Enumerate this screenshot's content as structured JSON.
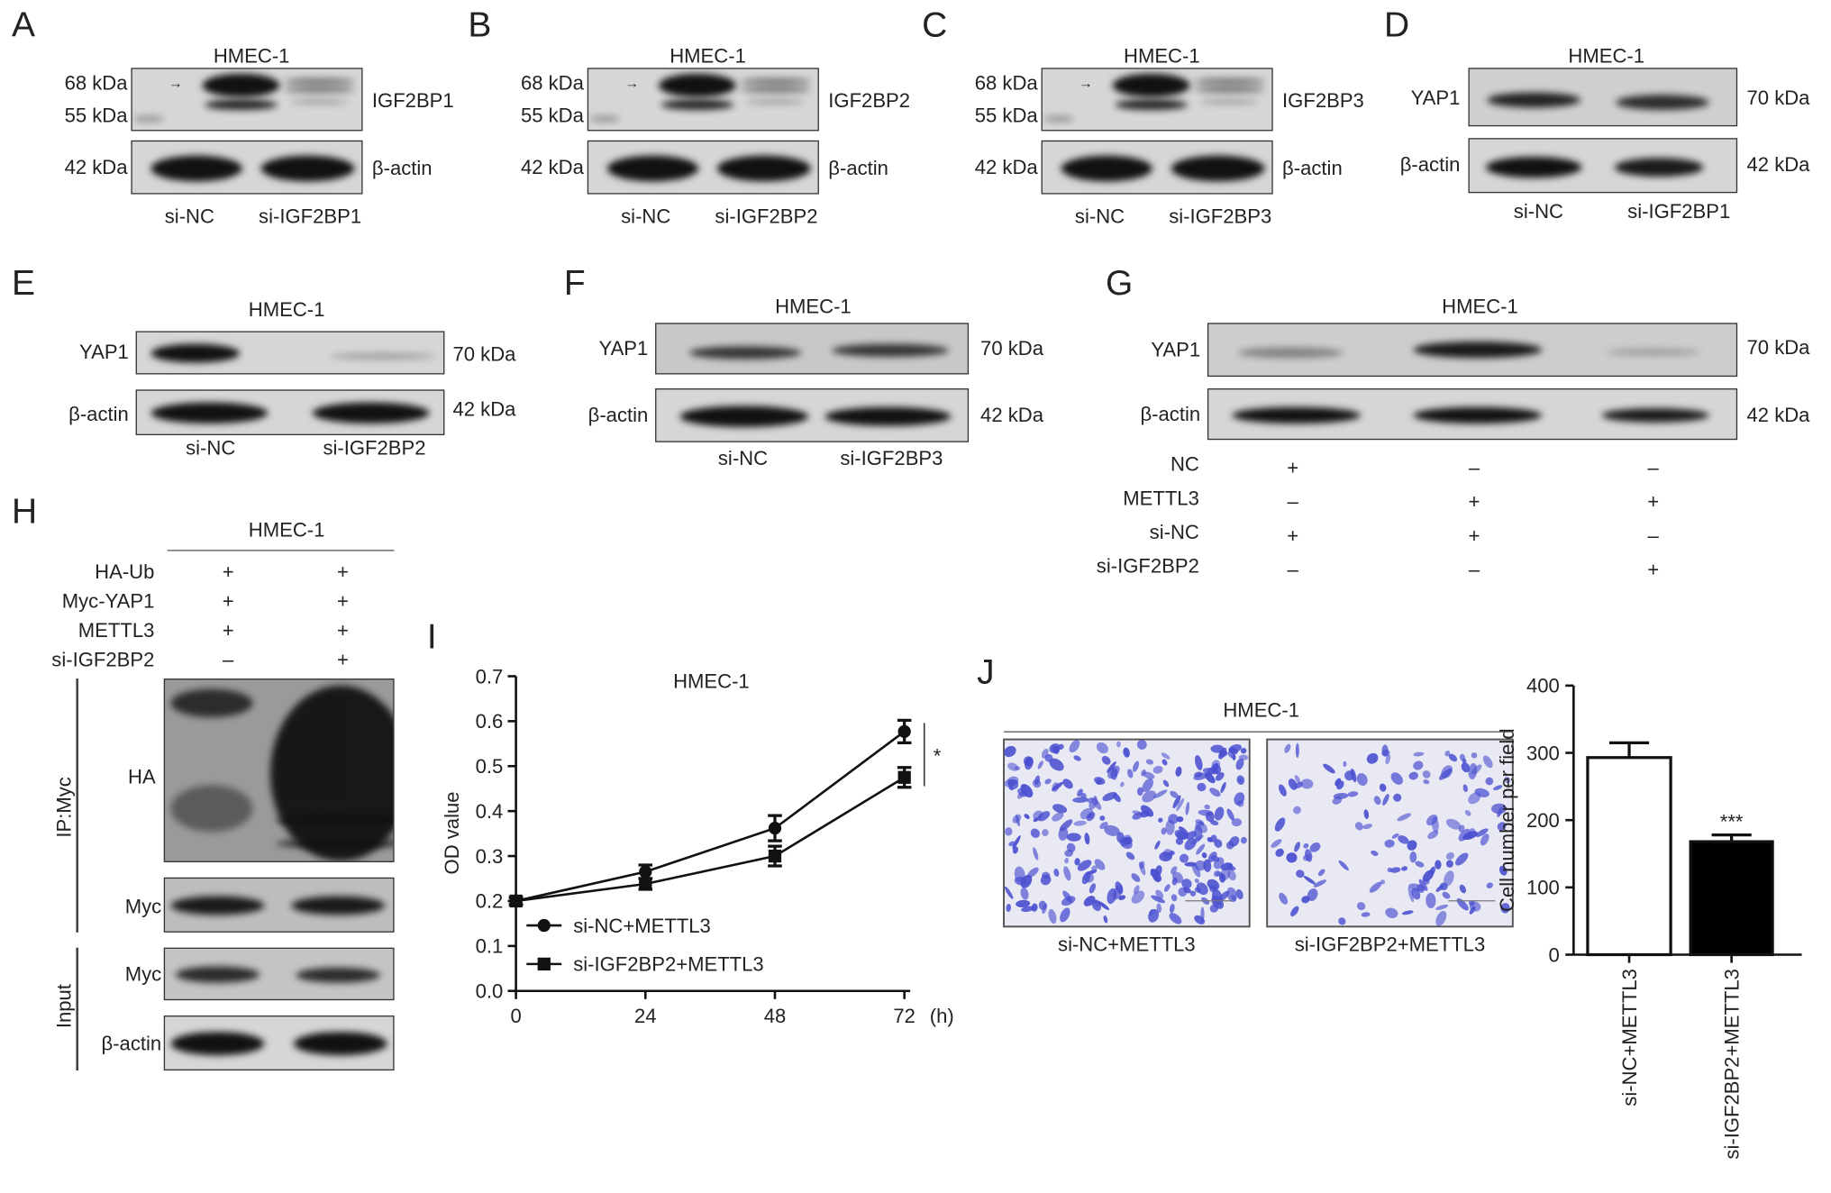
{
  "panels": {
    "A": {
      "letter": "A",
      "title": "HMEC-1",
      "markers": [
        "68 kDa",
        "55 kDa",
        "42 kDa"
      ],
      "targets": [
        "IGF2BP1",
        "β-actin"
      ],
      "lanes": [
        "si-NC",
        "si-IGF2BP1"
      ]
    },
    "B": {
      "letter": "B",
      "title": "HMEC-1",
      "markers": [
        "68 kDa",
        "55 kDa",
        "42 kDa"
      ],
      "targets": [
        "IGF2BP2",
        "β-actin"
      ],
      "lanes": [
        "si-NC",
        "si-IGF2BP2"
      ]
    },
    "C": {
      "letter": "C",
      "title": "HMEC-1",
      "markers": [
        "68 kDa",
        "55 kDa",
        "42 kDa"
      ],
      "targets": [
        "IGF2BP3",
        "β-actin"
      ],
      "lanes": [
        "si-NC",
        "si-IGF2BP3"
      ]
    },
    "D": {
      "letter": "D",
      "title": "HMEC-1",
      "targets": [
        "YAP1",
        "β-actin"
      ],
      "markers": [
        "70 kDa",
        "42 kDa"
      ],
      "lanes": [
        "si-NC",
        "si-IGF2BP1"
      ]
    },
    "E": {
      "letter": "E",
      "title": "HMEC-1",
      "targets": [
        "YAP1",
        "β-actin"
      ],
      "markers": [
        "70 kDa",
        "42 kDa"
      ],
      "lanes": [
        "si-NC",
        "si-IGF2BP2"
      ]
    },
    "F": {
      "letter": "F",
      "title": "HMEC-1",
      "targets": [
        "YAP1",
        "β-actin"
      ],
      "markers": [
        "70 kDa",
        "42 kDa"
      ],
      "lanes": [
        "si-NC",
        "si-IGF2BP3"
      ]
    },
    "G": {
      "letter": "G",
      "title": "HMEC-1",
      "targets": [
        "YAP1",
        "β-actin"
      ],
      "markers": [
        "70 kDa",
        "42 kDa"
      ],
      "rows": [
        {
          "label": "NC",
          "cells": [
            "+",
            "–",
            "–"
          ]
        },
        {
          "label": "METTL3",
          "cells": [
            "–",
            "+",
            "+"
          ]
        },
        {
          "label": "si-NC",
          "cells": [
            "+",
            "+",
            "–"
          ]
        },
        {
          "label": "si-IGF2BP2",
          "cells": [
            "–",
            "–",
            "+"
          ]
        }
      ]
    },
    "H": {
      "letter": "H",
      "title": "HMEC-1",
      "rows": [
        {
          "label": "HA-Ub",
          "cells": [
            "+",
            "+"
          ]
        },
        {
          "label": "Myc-YAP1",
          "cells": [
            "+",
            "+"
          ]
        },
        {
          "label": "METTL3",
          "cells": [
            "+",
            "+"
          ]
        },
        {
          "label": "si-IGF2BP2",
          "cells": [
            "–",
            "+"
          ]
        }
      ],
      "groups": [
        "IP:Myc",
        "Input"
      ],
      "targets": [
        "HA",
        "Myc",
        "Myc",
        "β-actin"
      ]
    },
    "I": {
      "letter": "I"
    },
    "J": {
      "letter": "J",
      "title": "HMEC-1",
      "image_labels": [
        "si-NC+METTL3",
        "si-IGF2BP2+METTL3"
      ]
    }
  },
  "chart_data": [
    {
      "type": "line",
      "title": "HMEC-1",
      "xlabel": "",
      "x_unit": "(h)",
      "ylabel": "OD value",
      "x": [
        0,
        24,
        48,
        72
      ],
      "xticks": [
        "0",
        "24",
        "48",
        "72"
      ],
      "yticks": [
        "0.0",
        "0.1",
        "0.2",
        "0.3",
        "0.4",
        "0.5",
        "0.6",
        "0.7"
      ],
      "ylim": [
        0,
        0.7
      ],
      "legend": "bottom-left",
      "series": [
        {
          "name": "si-NC+METTL3",
          "marker": "circle",
          "values": [
            0.2,
            0.265,
            0.362,
            0.577
          ],
          "errors": [
            0.008,
            0.015,
            0.028,
            0.025
          ]
        },
        {
          "name": "si-IGF2BP2+METTL3",
          "marker": "square",
          "values": [
            0.2,
            0.238,
            0.3,
            0.475
          ],
          "errors": [
            0.008,
            0.012,
            0.022,
            0.022
          ]
        }
      ],
      "annotation": "*"
    },
    {
      "type": "bar",
      "ylabel": "Cell number per field",
      "categories": [
        "si-NC+METTL3",
        "si-IGF2BP2+METTL3"
      ],
      "values": [
        293,
        168
      ],
      "errors": [
        22,
        10
      ],
      "colors": [
        "#ffffff",
        "#000000"
      ],
      "yticks": [
        "0",
        "100",
        "200",
        "300",
        "400"
      ],
      "ylim": [
        0,
        400
      ],
      "annotation": "***"
    }
  ],
  "colors": {
    "stain": "#4a4fd0",
    "stain_bg": "#e9e9f3"
  }
}
